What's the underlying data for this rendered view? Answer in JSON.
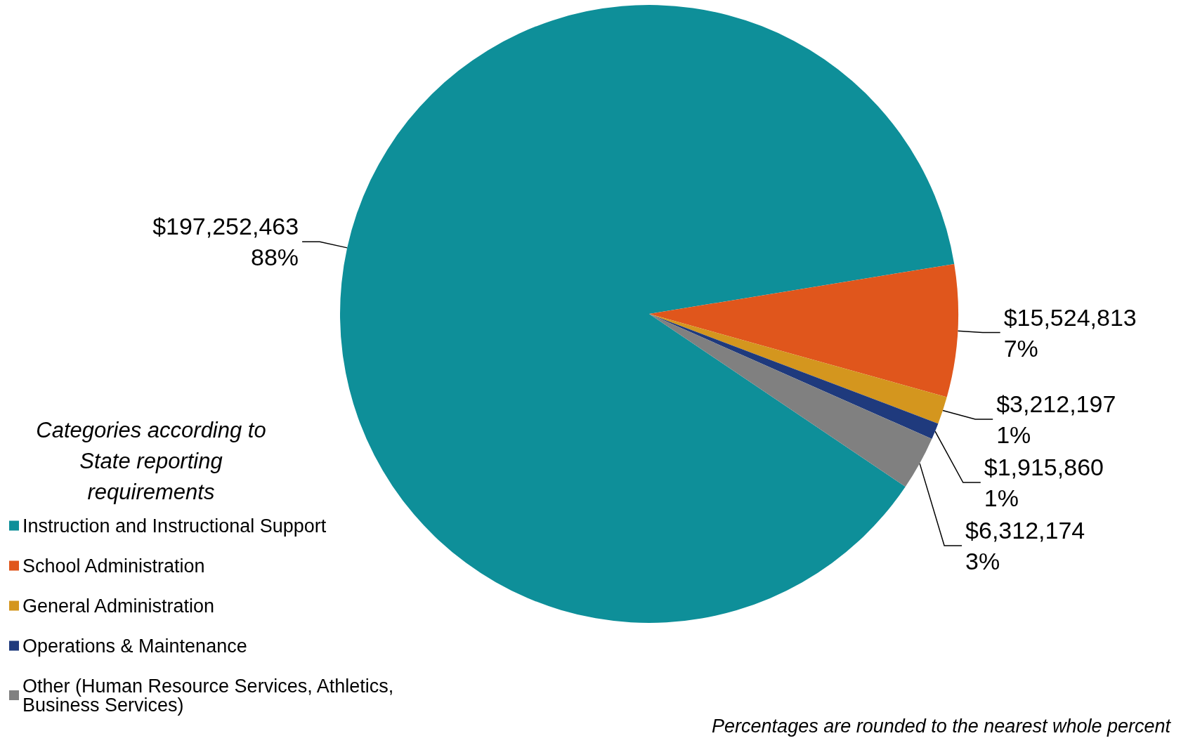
{
  "chart_data": {
    "type": "pie",
    "legend_title": "Categories according to State reporting requirements",
    "categories": [
      "Instruction and Instructional Support",
      "School Administration",
      "General Administration",
      "Operations & Maintenance",
      "Other (Human Resource Services, Athletics, Business Services)"
    ],
    "values": [
      197252463,
      15524813,
      3212197,
      1915860,
      6312174
    ],
    "colors": [
      "#0e8f99",
      "#e0561c",
      "#d4961e",
      "#1f3a7d",
      "#808080"
    ],
    "value_labels": [
      "$197,252,463\n88%",
      "$15,524,813\n7%",
      "$3,212,197\n1%",
      "$1,915,860\n1%",
      "$6,312,174\n3%"
    ],
    "legend": "bottom left",
    "annotations": [
      "Percentages are rounded to the nearest whole percent"
    ]
  }
}
